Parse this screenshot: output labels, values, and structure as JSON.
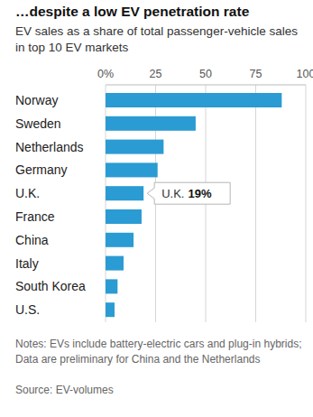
{
  "chart_data": {
    "type": "bar",
    "orientation": "horizontal",
    "title": "…despite a low EV penetration rate",
    "subtitle": "EV sales as a share of total passenger-vehicle sales in top 10 EV markets",
    "categories": [
      "Norway",
      "Sweden",
      "Netherlands",
      "Germany",
      "U.K.",
      "France",
      "China",
      "Italy",
      "South Korea",
      "U.S."
    ],
    "values": [
      88,
      45,
      29,
      26,
      19,
      18,
      14,
      9,
      6,
      4.5
    ],
    "color": "#2b9bd3",
    "xlim": [
      0,
      100
    ],
    "xticks": [
      {
        "value": 0,
        "label": "0%"
      },
      25,
      50,
      75,
      100
    ],
    "grid": true,
    "annotations": [
      {
        "category": "U.K.",
        "value_label": "19%"
      }
    ],
    "notes": "Notes: EVs include battery-electric cars and plug-in hybrids; Data are preliminary for China and the Netherlands",
    "source": "Source: EV-volumes"
  }
}
